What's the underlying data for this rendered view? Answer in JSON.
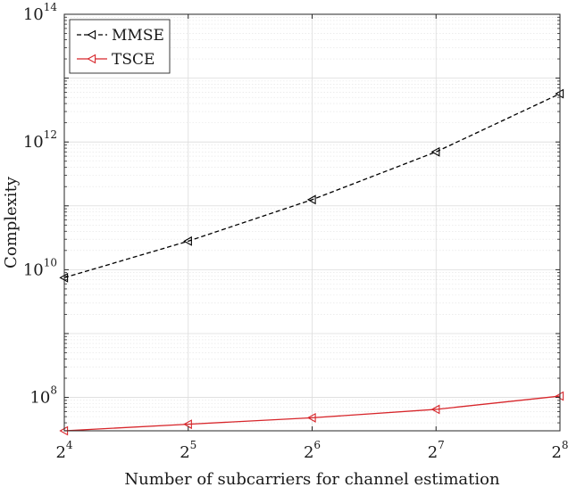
{
  "chart_data": {
    "type": "line",
    "xlabel": "Number of subcarriers for channel estimation",
    "ylabel": "Complexity",
    "x_scale": "log2",
    "y_scale": "log10",
    "xlim": [
      16,
      256
    ],
    "ylim": [
      30000000,
      100000000000000
    ],
    "x_ticks": [
      {
        "base": "2",
        "exp": "4"
      },
      {
        "base": "2",
        "exp": "5"
      },
      {
        "base": "2",
        "exp": "6"
      },
      {
        "base": "2",
        "exp": "7"
      },
      {
        "base": "2",
        "exp": "8"
      }
    ],
    "y_ticks": [
      {
        "base": "10",
        "exp": "8"
      },
      {
        "base": "10",
        "exp": "10"
      },
      {
        "base": "10",
        "exp": "12"
      },
      {
        "base": "10",
        "exp": "14"
      }
    ],
    "x": [
      16,
      32,
      64,
      128,
      256
    ],
    "grid": true,
    "legend_position": "top-left",
    "series": [
      {
        "name": "MMSE",
        "values": [
          7500000000,
          28000000000,
          125000000000,
          700000000000,
          5700000000000
        ],
        "color": "#000000",
        "dash": "dashed",
        "marker": "triangle-left"
      },
      {
        "name": "TSCE",
        "values": [
          30000000,
          38000000,
          48000000,
          65000000,
          105000000
        ],
        "color": "#d7262b",
        "dash": "solid",
        "marker": "triangle-left"
      }
    ]
  }
}
